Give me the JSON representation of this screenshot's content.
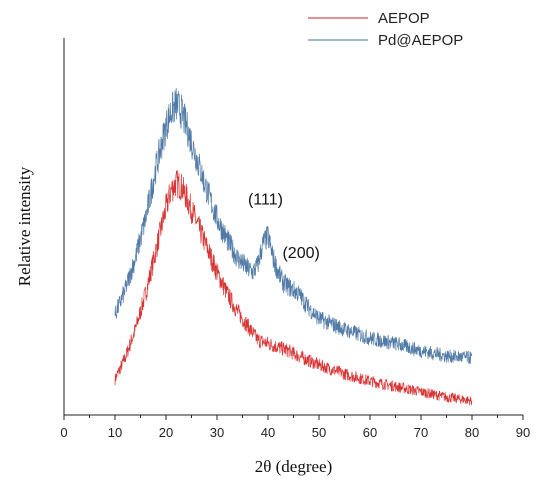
{
  "chart_data": {
    "type": "line",
    "title": "",
    "xlabel": "2θ (degree)",
    "ylabel": "Relative intensity",
    "xlim": [
      0,
      90
    ],
    "xticks": [
      0,
      10,
      20,
      30,
      40,
      50,
      60,
      70,
      80,
      90
    ],
    "ylim": [
      0,
      1
    ],
    "y_ticks_labeled": false,
    "grid": false,
    "legend_position": "top-right",
    "series": [
      {
        "name": "AEPOP",
        "color": "#d41f1f",
        "x": [
          10,
          12,
          14,
          16,
          18,
          20,
          21,
          22,
          23,
          24,
          26,
          28,
          30,
          32,
          34,
          36,
          37,
          38,
          40,
          42,
          44,
          46,
          50,
          55,
          60,
          65,
          70,
          75,
          80
        ],
        "y": [
          0.1,
          0.16,
          0.24,
          0.34,
          0.46,
          0.58,
          0.63,
          0.65,
          0.64,
          0.61,
          0.54,
          0.47,
          0.4,
          0.34,
          0.29,
          0.25,
          0.23,
          0.21,
          0.2,
          0.19,
          0.18,
          0.165,
          0.14,
          0.115,
          0.095,
          0.08,
          0.065,
          0.05,
          0.04
        ]
      },
      {
        "name": "Pd@AEPOP",
        "color": "#3e6d9c",
        "x": [
          10,
          12,
          14,
          16,
          18,
          20,
          21,
          22,
          23,
          24,
          26,
          28,
          30,
          32,
          34,
          36,
          37,
          38,
          39,
          40,
          41,
          42,
          43,
          44,
          45,
          46,
          47,
          48,
          50,
          55,
          60,
          65,
          70,
          75,
          80
        ],
        "y": [
          0.28,
          0.35,
          0.44,
          0.55,
          0.69,
          0.81,
          0.85,
          0.87,
          0.85,
          0.81,
          0.72,
          0.63,
          0.55,
          0.49,
          0.44,
          0.41,
          0.4,
          0.42,
          0.48,
          0.5,
          0.44,
          0.4,
          0.37,
          0.36,
          0.35,
          0.34,
          0.32,
          0.3,
          0.27,
          0.24,
          0.215,
          0.2,
          0.18,
          0.165,
          0.16
        ]
      }
    ],
    "annotations": [
      {
        "text": "(111)",
        "x": 39.5,
        "y": 0.59
      },
      {
        "text": "(200)",
        "x": 46.5,
        "y": 0.44
      }
    ]
  }
}
